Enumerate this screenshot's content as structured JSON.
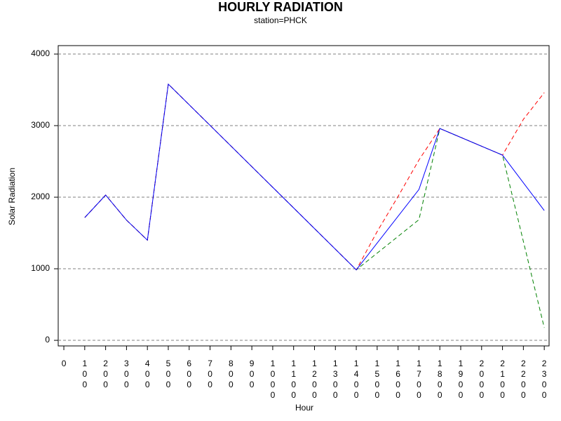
{
  "chart_data": {
    "type": "line",
    "title": "HOURLY RADIATION",
    "subtitle": "station=PHCK",
    "x_label": "Hour",
    "y_label": "Solar Radiation",
    "xlim": [
      -27,
      2323
    ],
    "ylim": [
      -78,
      4118
    ],
    "xticks": [
      0,
      100,
      200,
      300,
      400,
      500,
      600,
      700,
      800,
      900,
      1000,
      1100,
      1200,
      1300,
      1400,
      1500,
      1600,
      1700,
      1800,
      1900,
      2000,
      2100,
      2200,
      2300
    ],
    "yticks": [
      0,
      1000,
      2000,
      3000,
      4000
    ],
    "grid": true,
    "series": [
      {
        "color": "#0000ff",
        "dashed": false,
        "x": [
          100,
          200,
          300,
          400,
          500,
          1400,
          1700,
          1800,
          2100,
          2300
        ],
        "values": [
          1715,
          2030,
          1680,
          1400,
          3580,
          985,
          2108,
          2960,
          2588,
          1814
        ]
      },
      {
        "color": "#ff0000",
        "dashed": true,
        "x": [
          100,
          200,
          300,
          400,
          500,
          1400,
          1500,
          1600,
          1700,
          1800,
          2100,
          2200,
          2300
        ],
        "values": [
          1715,
          2030,
          1680,
          1400,
          3580,
          985,
          1520,
          2010,
          2520,
          2960,
          2588,
          3088,
          3460
        ]
      },
      {
        "color": "#008000",
        "dashed": true,
        "x": [
          100,
          200,
          300,
          400,
          500,
          1400,
          1700,
          1800,
          2100,
          2300
        ],
        "values": [
          1715,
          2030,
          1680,
          1400,
          3580,
          985,
          1686,
          2960,
          2588,
          176
        ]
      }
    ]
  }
}
